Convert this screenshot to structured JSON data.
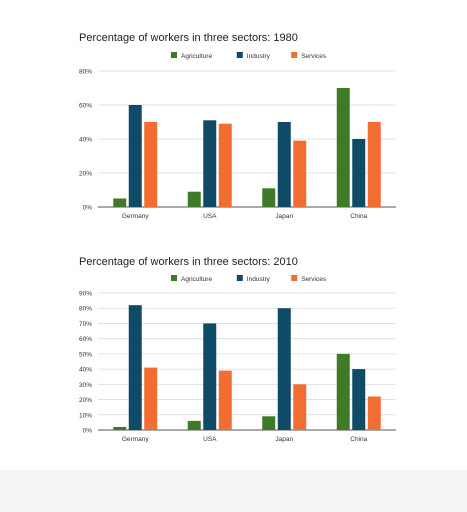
{
  "chart_data": [
    {
      "type": "bar",
      "title": "Percentage of workers in three sectors: 1980",
      "categories": [
        "Germany",
        "USA",
        "Japan",
        "China"
      ],
      "series": [
        {
          "name": "Agriculture",
          "values": [
            5,
            9,
            11,
            70
          ]
        },
        {
          "name": "Industry",
          "values": [
            60,
            51,
            50,
            40
          ]
        },
        {
          "name": "Services",
          "values": [
            50,
            49,
            39,
            50
          ]
        }
      ],
      "ylim": [
        0,
        80
      ],
      "yticks": [
        0,
        20,
        40,
        60,
        80
      ],
      "ytick_labels": [
        "0%",
        "20%",
        "40%",
        "60%",
        "80%"
      ],
      "grid": true,
      "legend_position": "top"
    },
    {
      "type": "bar",
      "title": "Percentage of workers in three sectors: 2010",
      "categories": [
        "Germany",
        "USA",
        "Japan",
        "China"
      ],
      "series": [
        {
          "name": "Agriculture",
          "values": [
            2,
            6,
            9,
            50
          ]
        },
        {
          "name": "Industry",
          "values": [
            82,
            70,
            80,
            40
          ]
        },
        {
          "name": "Services",
          "values": [
            41,
            39,
            30,
            22
          ]
        }
      ],
      "ylim": [
        0,
        90
      ],
      "yticks": [
        0,
        10,
        20,
        30,
        40,
        50,
        60,
        70,
        80,
        90
      ],
      "ytick_labels": [
        "0%",
        "10%",
        "20%",
        "30%",
        "40%",
        "50%",
        "60%",
        "70%",
        "80%",
        "90%"
      ],
      "grid": true,
      "legend_position": "top"
    }
  ],
  "colors": {
    "Agriculture": "#3e7a28",
    "Industry": "#0f4a66",
    "Services": "#f26d32",
    "grid": "#dcdcdc",
    "axis": "#555555"
  }
}
